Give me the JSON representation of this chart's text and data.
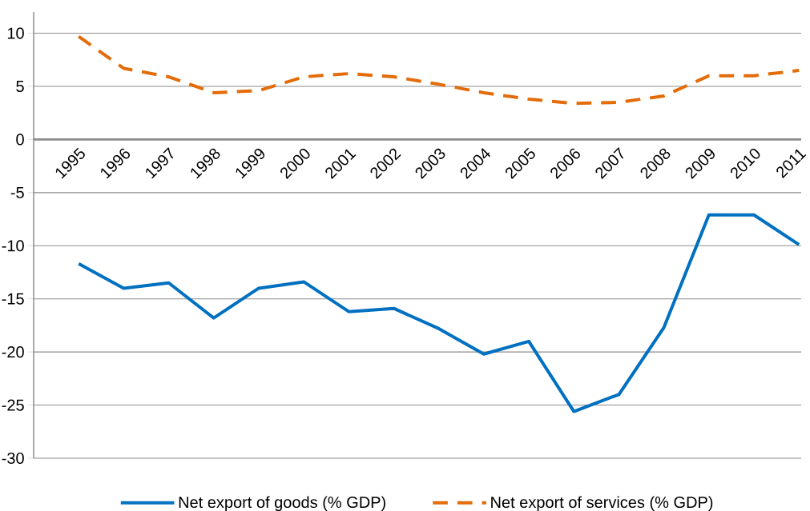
{
  "chart_data": {
    "type": "line",
    "categories": [
      "1995",
      "1996",
      "1997",
      "1998",
      "1999",
      "2000",
      "2001",
      "2002",
      "2003",
      "2004",
      "2005",
      "2006",
      "2007",
      "2008",
      "2009",
      "2010",
      "2011"
    ],
    "series": [
      {
        "name": "Net export of goods (% GDP)",
        "color": "#0070c0",
        "line_style": "solid",
        "values": [
          -11.7,
          -14.0,
          -13.5,
          -16.8,
          -14.0,
          -13.4,
          -16.2,
          -15.9,
          -17.8,
          -20.2,
          -19.0,
          -25.6,
          -24.0,
          -17.7,
          -7.1,
          -7.1,
          -9.9
        ]
      },
      {
        "name": "Net export of services (%  GDP)",
        "color": "#e36c09",
        "line_style": "dashed",
        "values": [
          9.7,
          6.7,
          5.9,
          4.4,
          4.6,
          5.9,
          6.2,
          5.9,
          5.2,
          4.4,
          3.8,
          3.4,
          3.5,
          4.1,
          6.0,
          6.0,
          6.5
        ]
      }
    ],
    "ylim": [
      -30,
      12
    ],
    "yticks": [
      -30,
      -25,
      -20,
      -15,
      -10,
      -5,
      0,
      5,
      10
    ],
    "grid": "y",
    "legend": "bottom",
    "marker": "none"
  }
}
